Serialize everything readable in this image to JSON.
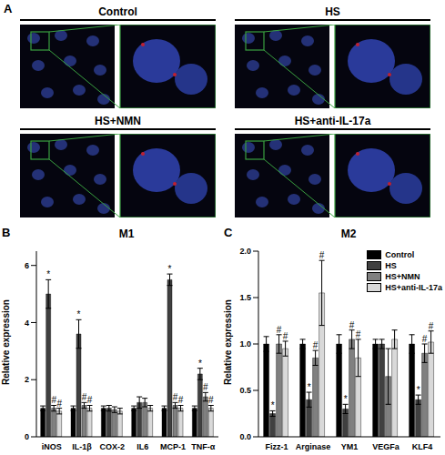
{
  "panel_a": {
    "label": "A",
    "images": [
      "Control",
      "HS",
      "HS+NMN",
      "HS+anti-IL-17a"
    ]
  },
  "chart_data": [
    {
      "type": "bar",
      "panel": "B",
      "title": "M1",
      "y_label": "Relative expression",
      "categories": [
        "iNOS",
        "IL-1β",
        "COX-2",
        "IL6",
        "MCP-1",
        "TNF-α"
      ],
      "ylim": [
        0,
        6.5
      ],
      "yticks": [
        0,
        2,
        4,
        6
      ],
      "series": [
        {
          "color": "#000000",
          "values": [
            1,
            1,
            1,
            1,
            1,
            1
          ],
          "errors": [
            0.08,
            0.08,
            0.08,
            0.08,
            0.08,
            0.08
          ],
          "annotations": [
            null,
            null,
            null,
            null,
            null,
            null
          ]
        },
        {
          "color": "#404040",
          "values": [
            5.0,
            3.6,
            1.0,
            1.2,
            5.5,
            2.2
          ],
          "errors": [
            0.5,
            0.5,
            0.1,
            0.2,
            0.2,
            0.2
          ],
          "annotations": [
            "*",
            "*",
            null,
            null,
            "*",
            "*"
          ]
        },
        {
          "color": "#808080",
          "values": [
            1.0,
            1.1,
            0.95,
            1.2,
            1.1,
            1.4
          ],
          "errors": [
            0.1,
            0.1,
            0.1,
            0.15,
            0.1,
            0.15
          ],
          "annotations": [
            "#",
            "#",
            null,
            null,
            "#",
            "#"
          ]
        },
        {
          "color": "#d9d9d9",
          "values": [
            0.9,
            1.0,
            0.9,
            1.0,
            1.0,
            1.0
          ],
          "errors": [
            0.1,
            0.1,
            0.1,
            0.1,
            0.1,
            0.1
          ],
          "annotations": [
            "#",
            "#",
            null,
            null,
            "#",
            "#"
          ]
        }
      ]
    },
    {
      "type": "bar",
      "panel": "C",
      "title": "M2",
      "y_label": "Relative expression",
      "categories": [
        "Fizz-1",
        "Arginase",
        "YM1",
        "VEGFa",
        "KLF4"
      ],
      "ylim": [
        0,
        2.0
      ],
      "yticks": [
        {
          "value": 0,
          "label": "0.0"
        },
        0.5,
        {
          "value": 1,
          "label": "1.0"
        },
        1.5,
        {
          "value": 2,
          "label": "2.0"
        }
      ],
      "legend": "top-right",
      "series": [
        {
          "name": "Control",
          "color": "#000000",
          "values": [
            1,
            1,
            1,
            1,
            1
          ],
          "errors": [
            0.08,
            0.05,
            0.1,
            0.05,
            0.1
          ],
          "annotations": [
            null,
            null,
            null,
            null,
            null
          ]
        },
        {
          "name": "HS",
          "color": "#404040",
          "values": [
            0.25,
            0.4,
            0.3,
            1.0,
            0.4
          ],
          "errors": [
            0.03,
            0.08,
            0.05,
            0.05,
            0.05
          ],
          "annotations": [
            "*",
            "*",
            "*",
            null,
            "*"
          ]
        },
        {
          "name": "HS+NMN",
          "color": "#808080",
          "values": [
            1.0,
            0.85,
            1.05,
            0.65,
            0.9
          ],
          "errors": [
            0.1,
            0.08,
            0.1,
            0.3,
            0.1
          ],
          "annotations": [
            "#",
            "#",
            "#",
            null,
            "#"
          ]
        },
        {
          "name": "HS+anti-IL-17a",
          "color": "#d9d9d9",
          "values": [
            0.95,
            1.55,
            0.85,
            1.05,
            1.02
          ],
          "errors": [
            0.08,
            0.35,
            0.2,
            0.1,
            0.12
          ],
          "annotations": [
            "#",
            "#",
            "#",
            null,
            "#"
          ]
        }
      ]
    }
  ]
}
